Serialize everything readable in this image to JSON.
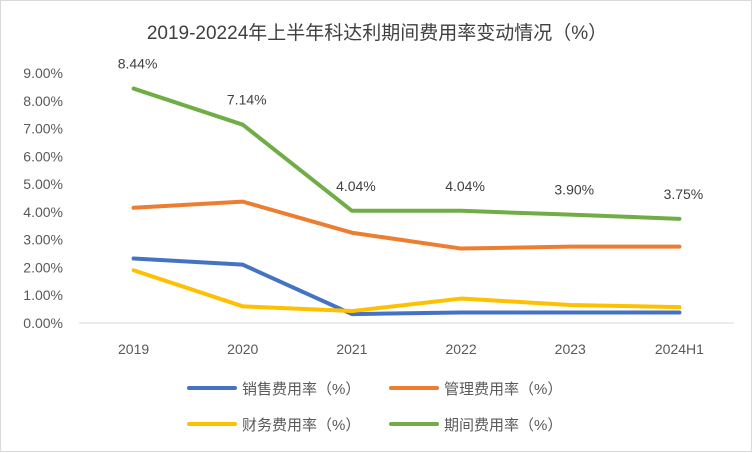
{
  "chart_data": {
    "type": "line",
    "title": "2019-20224年上半年科达利期间费用率变动情况（%）",
    "categories": [
      "2019",
      "2020",
      "2021",
      "2022",
      "2023",
      "2024H1"
    ],
    "ylim": [
      0,
      9
    ],
    "yticks": [
      "0.00%",
      "1.00%",
      "2.00%",
      "3.00%",
      "4.00%",
      "5.00%",
      "6.00%",
      "7.00%",
      "8.00%",
      "9.00%"
    ],
    "grid": false,
    "legend_position": "bottom",
    "series": [
      {
        "name": "销售费用率（%）",
        "color": "#4472c4",
        "values": [
          2.32,
          2.1,
          0.32,
          0.38,
          0.38,
          0.38
        ],
        "labels": []
      },
      {
        "name": "管理费用率（%）",
        "color": "#ed7d31",
        "values": [
          4.15,
          4.37,
          3.25,
          2.68,
          2.75,
          2.75
        ],
        "labels": []
      },
      {
        "name": "财务费用率（%）",
        "color": "#ffc000",
        "values": [
          1.9,
          0.6,
          0.43,
          0.88,
          0.65,
          0.57
        ],
        "labels": []
      },
      {
        "name": "期间费用率（%）",
        "color": "#70ad47",
        "values": [
          8.44,
          7.14,
          4.04,
          4.04,
          3.9,
          3.75
        ],
        "labels": [
          "8.44%",
          "7.14%",
          "4.04%",
          "4.04%",
          "3.90%",
          "3.75%"
        ]
      }
    ]
  }
}
